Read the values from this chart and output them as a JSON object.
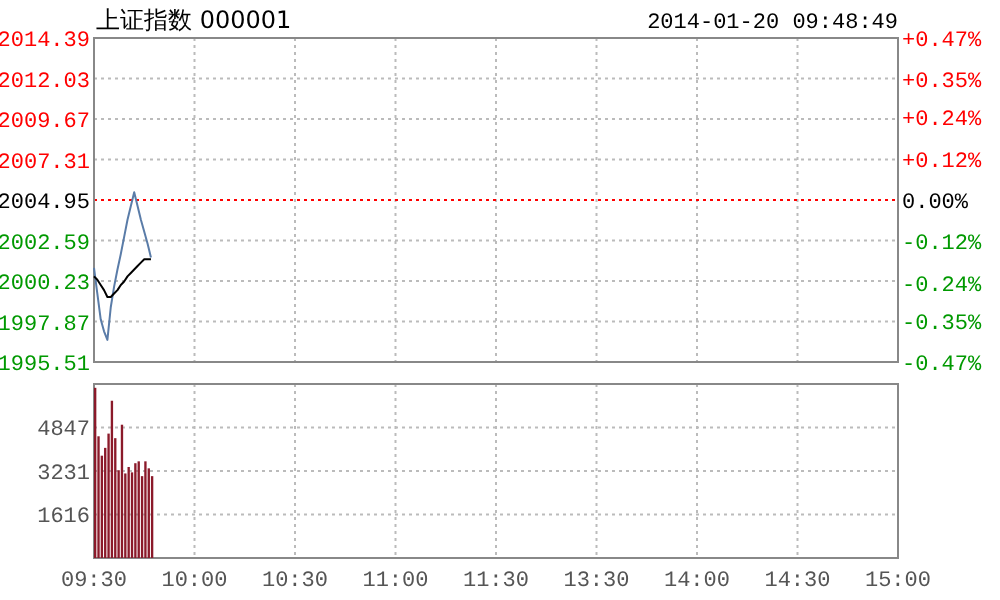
{
  "chart_data": [
    {
      "type": "line",
      "title": "上证指数 000001",
      "annotations": [
        "2014-01-20 09:48:49"
      ],
      "categories": [
        null,
        null,
        null,
        null,
        null,
        null,
        null,
        null,
        null,
        null,
        null,
        null,
        null,
        null,
        null,
        null,
        null,
        null,
        null,
        null,
        null,
        null,
        null,
        null,
        null,
        null,
        null,
        null,
        null,
        null,
        null,
        null,
        null,
        null,
        null,
        null,
        null,
        null,
        null,
        null,
        null,
        null,
        null,
        null,
        null,
        null,
        null,
        null,
        null,
        null,
        null,
        null,
        null,
        null,
        null,
        null,
        null,
        null,
        null,
        null,
        null,
        null,
        null,
        null,
        null,
        null,
        null,
        null,
        null,
        null,
        null,
        null,
        null,
        null,
        null,
        null,
        null,
        null,
        null,
        null,
        null,
        null,
        null,
        null,
        null,
        null,
        null,
        null,
        null,
        null,
        null,
        null,
        null,
        null,
        null,
        null,
        null,
        null,
        null,
        null,
        null,
        null,
        null,
        null,
        null,
        null,
        null,
        null,
        null,
        null,
        null,
        null,
        null,
        null,
        null,
        null,
        null,
        null,
        null,
        null,
        null,
        null,
        null,
        null,
        null,
        null,
        null,
        null,
        null,
        null,
        null,
        null,
        null,
        null,
        null,
        null,
        null,
        null,
        null,
        null,
        null,
        null,
        null,
        null,
        null,
        null,
        null,
        null,
        null,
        null,
        null,
        null,
        null,
        null,
        null,
        null,
        null,
        null,
        null,
        null,
        null,
        null,
        null,
        null,
        null,
        null,
        null,
        null,
        null,
        null,
        null,
        null,
        null,
        null,
        null,
        null,
        null,
        null,
        null,
        null,
        null,
        null,
        null,
        null,
        null,
        null,
        null,
        null,
        null,
        null,
        null,
        null,
        null,
        null,
        null,
        null,
        null,
        null,
        null,
        null,
        null,
        null,
        null,
        null,
        null,
        null,
        null,
        null,
        null,
        null,
        null,
        null,
        null,
        null,
        null,
        null,
        null,
        null,
        null,
        null,
        null,
        null,
        null,
        null,
        null,
        null,
        null,
        null,
        null,
        null,
        null,
        null,
        null,
        null,
        null,
        null,
        null,
        null,
        null,
        null,
        null
      ],
      "series": [
        {
          "color": "#5a7ca8",
          "values": [
            2001.0,
            1999.5,
            1998.0,
            1997.3,
            1996.8,
            1998.7,
            1999.9,
            2000.9,
            2001.8,
            2002.8,
            2003.8,
            2004.6,
            2005.4,
            2004.6,
            2003.8,
            2003.1,
            2002.4,
            2001.6,
            null,
            null,
            null,
            null,
            null,
            null,
            null,
            null,
            null,
            null,
            null,
            null,
            null,
            null,
            null,
            null,
            null,
            null,
            null,
            null,
            null,
            null,
            null,
            null,
            null,
            null,
            null,
            null,
            null,
            null,
            null,
            null,
            null,
            null,
            null,
            null,
            null,
            null,
            null,
            null,
            null,
            null,
            null,
            null,
            null,
            null,
            null,
            null,
            null,
            null,
            null,
            null,
            null,
            null,
            null,
            null,
            null,
            null,
            null,
            null,
            null,
            null,
            null,
            null,
            null,
            null,
            null,
            null,
            null,
            null,
            null,
            null,
            null,
            null,
            null,
            null,
            null,
            null,
            null,
            null,
            null,
            null,
            null,
            null,
            null,
            null,
            null,
            null,
            null,
            null,
            null,
            null,
            null,
            null,
            null,
            null,
            null,
            null,
            null,
            null,
            null,
            null,
            null,
            null,
            null,
            null,
            null,
            null,
            null,
            null,
            null,
            null,
            null,
            null,
            null,
            null,
            null,
            null,
            null,
            null,
            null,
            null,
            null,
            null,
            null,
            null,
            null,
            null,
            null,
            null,
            null,
            null,
            null,
            null,
            null,
            null,
            null,
            null,
            null,
            null,
            null,
            null,
            null,
            null,
            null,
            null,
            null,
            null,
            null,
            null,
            null,
            null,
            null,
            null,
            null,
            null,
            null,
            null,
            null,
            null,
            null,
            null,
            null,
            null,
            null,
            null,
            null,
            null,
            null,
            null,
            null,
            null,
            null,
            null,
            null,
            null,
            null,
            null,
            null,
            null,
            null,
            null,
            null,
            null,
            null,
            null,
            null,
            null,
            null,
            null,
            null,
            null,
            null,
            null,
            null,
            null,
            null,
            null,
            null,
            null,
            null,
            null,
            null,
            null,
            null,
            null,
            null,
            null,
            null,
            null,
            null,
            null,
            null,
            null,
            null,
            null,
            null,
            null,
            null,
            null,
            null,
            null,
            null
          ]
        },
        {
          "color": "#000000",
          "values": [
            2000.5,
            2000.3,
            2000.0,
            1999.7,
            1999.3,
            1999.3,
            1999.5,
            1999.7,
            2000.0,
            2000.2,
            2000.5,
            2000.7,
            2000.9,
            2001.1,
            2001.3,
            2001.5,
            2001.5,
            2001.5,
            null,
            null,
            null,
            null,
            null,
            null,
            null,
            null,
            null,
            null,
            null,
            null,
            null,
            null,
            null,
            null,
            null,
            null,
            null,
            null,
            null,
            null,
            null,
            null,
            null,
            null,
            null,
            null,
            null,
            null,
            null,
            null,
            null,
            null,
            null,
            null,
            null,
            null,
            null,
            null,
            null,
            null,
            null,
            null,
            null,
            null,
            null,
            null,
            null,
            null,
            null,
            null,
            null,
            null,
            null,
            null,
            null,
            null,
            null,
            null,
            null,
            null,
            null,
            null,
            null,
            null,
            null,
            null,
            null,
            null,
            null,
            null,
            null,
            null,
            null,
            null,
            null,
            null,
            null,
            null,
            null,
            null,
            null,
            null,
            null,
            null,
            null,
            null,
            null,
            null,
            null,
            null,
            null,
            null,
            null,
            null,
            null,
            null,
            null,
            null,
            null,
            null,
            null,
            null,
            null,
            null,
            null,
            null,
            null,
            null,
            null,
            null,
            null,
            null,
            null,
            null,
            null,
            null,
            null,
            null,
            null,
            null,
            null,
            null,
            null,
            null,
            null,
            null,
            null,
            null,
            null,
            null,
            null,
            null,
            null,
            null,
            null,
            null,
            null,
            null,
            null,
            null,
            null,
            null,
            null,
            null,
            null,
            null,
            null,
            null,
            null,
            null,
            null,
            null,
            null,
            null,
            null,
            null,
            null,
            null,
            null,
            null,
            null,
            null,
            null,
            null,
            null,
            null,
            null,
            null,
            null,
            null,
            null,
            null,
            null,
            null,
            null,
            null,
            null,
            null,
            null,
            null,
            null,
            null,
            null,
            null,
            null,
            null,
            null,
            null,
            null,
            null,
            null,
            null,
            null,
            null,
            null,
            null,
            null,
            null,
            null,
            null,
            null,
            null,
            null,
            null,
            null,
            null,
            null,
            null,
            null,
            null,
            null,
            null,
            null,
            null,
            null,
            null,
            null,
            null,
            null,
            null,
            null
          ]
        }
      ],
      "ylim": [
        1995.51,
        2014.39
      ],
      "yticks": [
        1995.51,
        1997.87,
        2000.23,
        2002.59,
        2004.95,
        2007.31,
        2009.67,
        2012.03,
        2014.39
      ],
      "y2lim": [
        -0.47,
        0.47
      ],
      "y2ticks": [
        {
          "value": -0.47,
          "label": "-0.47%"
        },
        {
          "value": -0.35,
          "label": "-0.35%"
        },
        {
          "value": -0.24,
          "label": "-0.24%"
        },
        {
          "value": -0.12,
          "label": "-0.12%"
        },
        {
          "value": 0,
          "label": "0.00%"
        },
        {
          "value": 0.12,
          "label": "+0.12%"
        },
        {
          "value": 0.24,
          "label": "+0.24%"
        },
        {
          "value": 0.35,
          "label": "+0.35%"
        },
        {
          "value": 0.47,
          "label": "+0.47%"
        }
      ],
      "ref_lines": [
        {
          "axis": "y",
          "value": 2004.95,
          "color": "#ff0000",
          "line_style": "dotted"
        }
      ],
      "grid": true,
      "tick_labels": "y"
    },
    {
      "type": "bar",
      "categories": [
        "09:30",
        null,
        null,
        null,
        null,
        null,
        null,
        null,
        null,
        null,
        null,
        null,
        null,
        null,
        null,
        null,
        null,
        null,
        null,
        null,
        null,
        null,
        null,
        null,
        null,
        null,
        null,
        null,
        null,
        null,
        "10:00",
        null,
        null,
        null,
        null,
        null,
        null,
        null,
        null,
        null,
        null,
        null,
        null,
        null,
        null,
        null,
        null,
        null,
        null,
        null,
        null,
        null,
        null,
        null,
        null,
        null,
        null,
        null,
        null,
        null,
        "10:30",
        null,
        null,
        null,
        null,
        null,
        null,
        null,
        null,
        null,
        null,
        null,
        null,
        null,
        null,
        null,
        null,
        null,
        null,
        null,
        null,
        null,
        null,
        null,
        null,
        null,
        null,
        null,
        null,
        null,
        "11:00",
        null,
        null,
        null,
        null,
        null,
        null,
        null,
        null,
        null,
        null,
        null,
        null,
        null,
        null,
        null,
        null,
        null,
        null,
        null,
        null,
        null,
        null,
        null,
        null,
        null,
        null,
        null,
        null,
        null,
        "11:30",
        null,
        null,
        null,
        null,
        null,
        null,
        null,
        null,
        null,
        null,
        null,
        null,
        null,
        null,
        null,
        null,
        null,
        null,
        null,
        null,
        null,
        null,
        null,
        null,
        null,
        null,
        null,
        null,
        null,
        "13:30",
        null,
        null,
        null,
        null,
        null,
        null,
        null,
        null,
        null,
        null,
        null,
        null,
        null,
        null,
        null,
        null,
        null,
        null,
        null,
        null,
        null,
        null,
        null,
        null,
        null,
        null,
        null,
        null,
        null,
        "14:00",
        null,
        null,
        null,
        null,
        null,
        null,
        null,
        null,
        null,
        null,
        null,
        null,
        null,
        null,
        null,
        null,
        null,
        null,
        null,
        null,
        null,
        null,
        null,
        null,
        null,
        null,
        null,
        null,
        null,
        "14:30",
        null,
        null,
        null,
        null,
        null,
        null,
        null,
        null,
        null,
        null,
        null,
        null,
        null,
        null,
        null,
        null,
        null,
        null,
        null,
        null,
        null,
        null,
        null,
        null,
        null,
        null,
        null,
        null,
        null,
        "15:00"
      ],
      "values": [
        6320,
        4520,
        3800,
        4090,
        4620,
        5840,
        4450,
        3260,
        4950,
        3140,
        3380,
        3180,
        3520,
        3590,
        3040,
        3590,
        3330,
        3040,
        null,
        null,
        null,
        null,
        null,
        null,
        null,
        null,
        null,
        null,
        null,
        null,
        null,
        null,
        null,
        null,
        null,
        null,
        null,
        null,
        null,
        null,
        null,
        null,
        null,
        null,
        null,
        null,
        null,
        null,
        null,
        null,
        null,
        null,
        null,
        null,
        null,
        null,
        null,
        null,
        null,
        null,
        null,
        null,
        null,
        null,
        null,
        null,
        null,
        null,
        null,
        null,
        null,
        null,
        null,
        null,
        null,
        null,
        null,
        null,
        null,
        null,
        null,
        null,
        null,
        null,
        null,
        null,
        null,
        null,
        null,
        null,
        null,
        null,
        null,
        null,
        null,
        null,
        null,
        null,
        null,
        null,
        null,
        null,
        null,
        null,
        null,
        null,
        null,
        null,
        null,
        null,
        null,
        null,
        null,
        null,
        null,
        null,
        null,
        null,
        null,
        null,
        null,
        null,
        null,
        null,
        null,
        null,
        null,
        null,
        null,
        null,
        null,
        null,
        null,
        null,
        null,
        null,
        null,
        null,
        null,
        null,
        null,
        null,
        null,
        null,
        null,
        null,
        null,
        null,
        null,
        null,
        null,
        null,
        null,
        null,
        null,
        null,
        null,
        null,
        null,
        null,
        null,
        null,
        null,
        null,
        null,
        null,
        null,
        null,
        null,
        null,
        null,
        null,
        null,
        null,
        null,
        null,
        null,
        null,
        null,
        null,
        null,
        null,
        null,
        null,
        null,
        null,
        null,
        null,
        null,
        null,
        null,
        null,
        null,
        null,
        null,
        null,
        null,
        null,
        null,
        null,
        null,
        null,
        null,
        null,
        null,
        null,
        null,
        null,
        null,
        null,
        null,
        null,
        null,
        null,
        null,
        null,
        null,
        null,
        null,
        null,
        null,
        null,
        null,
        null,
        null,
        null,
        null,
        null,
        null,
        null,
        null,
        null,
        null,
        null,
        null,
        null,
        null,
        null,
        null,
        null,
        null
      ],
      "color": "#8b1a2a",
      "ylim": [
        0,
        6462
      ],
      "yticks": [
        1616,
        3231,
        4847
      ],
      "grid": true
    }
  ]
}
